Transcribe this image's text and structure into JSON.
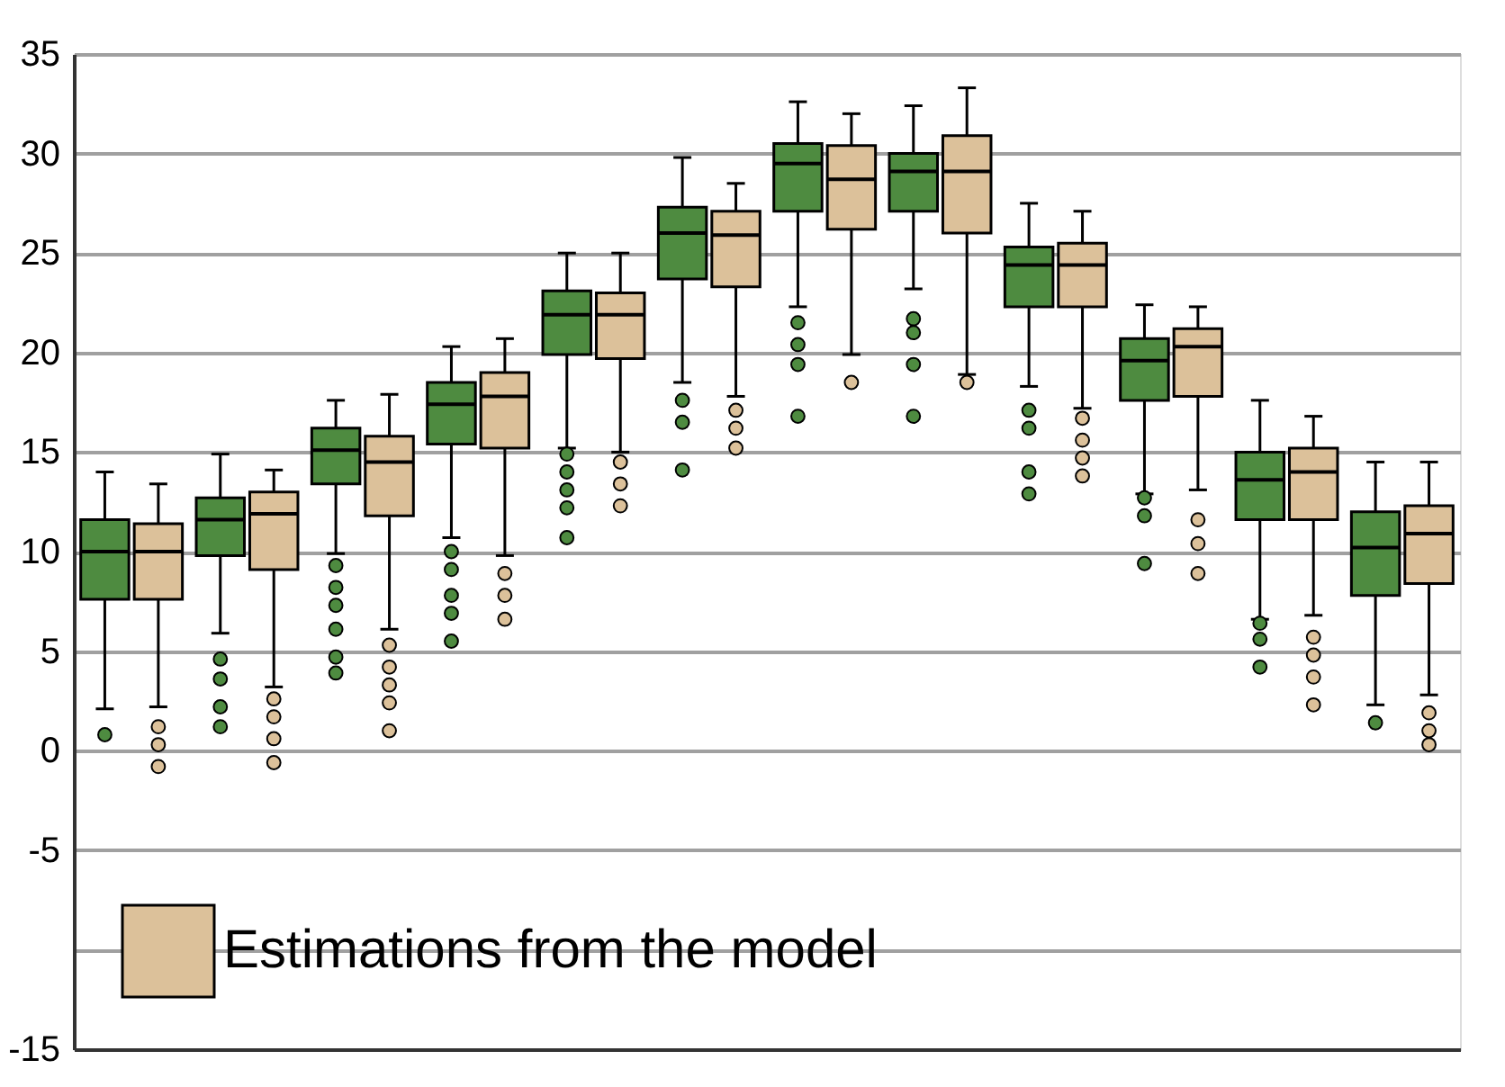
{
  "chart_data": {
    "type": "box",
    "categories": [
      null,
      null,
      null,
      null,
      null,
      null,
      null,
      null,
      null,
      null,
      null,
      null
    ],
    "series": [
      {
        "color": "#4e8b40",
        "boxes": [
          {
            "low": 2.1,
            "q1": 7.6,
            "median": 10.0,
            "q3": 11.6,
            "high": 14.0,
            "outliers": [
              0.8
            ]
          },
          {
            "low": 5.9,
            "q1": 9.8,
            "median": 11.6,
            "q3": 12.7,
            "high": 14.9,
            "outliers": [
              4.6,
              3.6,
              2.2,
              1.2
            ]
          },
          {
            "low": 9.9,
            "q1": 13.4,
            "median": 15.1,
            "q3": 16.2,
            "high": 17.6,
            "outliers": [
              9.3,
              8.2,
              7.3,
              6.1,
              4.7,
              3.9
            ]
          },
          {
            "low": 10.7,
            "q1": 15.4,
            "median": 17.4,
            "q3": 18.5,
            "high": 20.3,
            "outliers": [
              10.0,
              9.1,
              7.8,
              6.9,
              5.5
            ]
          },
          {
            "low": 15.2,
            "q1": 19.9,
            "median": 21.9,
            "q3": 23.1,
            "high": 25.0,
            "outliers": [
              14.9,
              14.0,
              13.1,
              12.2,
              10.7
            ]
          },
          {
            "low": 18.5,
            "q1": 23.7,
            "median": 26.0,
            "q3": 27.3,
            "high": 29.8,
            "outliers": [
              17.6,
              16.5,
              14.1
            ]
          },
          {
            "low": 22.3,
            "q1": 27.1,
            "median": 29.5,
            "q3": 30.5,
            "high": 32.6,
            "outliers": [
              21.5,
              20.4,
              19.4,
              16.8
            ]
          },
          {
            "low": 23.2,
            "q1": 27.1,
            "median": 29.1,
            "q3": 30.0,
            "high": 32.4,
            "outliers": [
              21.7,
              21.0,
              19.4,
              16.8
            ]
          },
          {
            "low": 18.3,
            "q1": 22.3,
            "median": 24.4,
            "q3": 25.3,
            "high": 27.5,
            "outliers": [
              17.1,
              16.2,
              14.0,
              12.9
            ]
          },
          {
            "low": 12.9,
            "q1": 17.6,
            "median": 19.6,
            "q3": 20.7,
            "high": 22.4,
            "outliers": [
              12.7,
              11.8,
              9.4
            ]
          },
          {
            "low": 6.6,
            "q1": 11.6,
            "median": 13.6,
            "q3": 15.0,
            "high": 17.6,
            "outliers": [
              6.4,
              5.6,
              4.2
            ]
          },
          {
            "low": 2.3,
            "q1": 7.8,
            "median": 10.2,
            "q3": 12.0,
            "high": 14.5,
            "outliers": [
              1.4
            ]
          }
        ]
      },
      {
        "name": "Estimations from the model",
        "color": "#dcc19a",
        "boxes": [
          {
            "low": 2.2,
            "q1": 7.6,
            "median": 10.0,
            "q3": 11.4,
            "high": 13.4,
            "outliers": [
              1.2,
              0.3,
              -0.8
            ]
          },
          {
            "low": 3.2,
            "q1": 9.1,
            "median": 11.9,
            "q3": 13.0,
            "high": 14.1,
            "outliers": [
              2.6,
              1.7,
              0.6,
              -0.6
            ]
          },
          {
            "low": 6.1,
            "q1": 11.8,
            "median": 14.5,
            "q3": 15.8,
            "high": 17.9,
            "outliers": [
              5.3,
              4.2,
              3.3,
              2.4,
              1.0
            ]
          },
          {
            "low": 9.8,
            "q1": 15.2,
            "median": 17.8,
            "q3": 19.0,
            "high": 20.7,
            "outliers": [
              8.9,
              7.8,
              6.6
            ]
          },
          {
            "low": 15.0,
            "q1": 19.7,
            "median": 21.9,
            "q3": 23.0,
            "high": 25.0,
            "outliers": [
              14.5,
              13.4,
              12.3
            ]
          },
          {
            "low": 17.8,
            "q1": 23.3,
            "median": 25.9,
            "q3": 27.1,
            "high": 28.5,
            "outliers": [
              17.1,
              16.2,
              15.2
            ]
          },
          {
            "low": 19.9,
            "q1": 26.2,
            "median": 28.7,
            "q3": 30.4,
            "high": 32.0,
            "outliers": [
              18.5
            ]
          },
          {
            "low": 18.9,
            "q1": 26.0,
            "median": 29.1,
            "q3": 30.9,
            "high": 33.3,
            "outliers": [
              18.5
            ]
          },
          {
            "low": 17.2,
            "q1": 22.3,
            "median": 24.4,
            "q3": 25.5,
            "high": 27.1,
            "outliers": [
              16.7,
              15.6,
              14.7,
              13.8
            ]
          },
          {
            "low": 13.1,
            "q1": 17.8,
            "median": 20.3,
            "q3": 21.2,
            "high": 22.3,
            "outliers": [
              11.6,
              10.4,
              8.9
            ]
          },
          {
            "low": 6.8,
            "q1": 11.6,
            "median": 14.0,
            "q3": 15.2,
            "high": 16.8,
            "outliers": [
              5.7,
              4.8,
              3.7,
              2.3
            ]
          },
          {
            "low": 2.8,
            "q1": 8.4,
            "median": 10.9,
            "q3": 12.3,
            "high": 14.5,
            "outliers": [
              1.9,
              1.0,
              0.3
            ]
          }
        ]
      }
    ],
    "ylim": [
      -15,
      35
    ],
    "yticks": [
      35,
      30,
      25,
      20,
      15,
      10,
      5,
      0,
      -5,
      {
        "value": -10,
        "label": null
      },
      -15
    ],
    "grid": "y",
    "legend": "bottom left",
    "tick_labels": "y"
  }
}
